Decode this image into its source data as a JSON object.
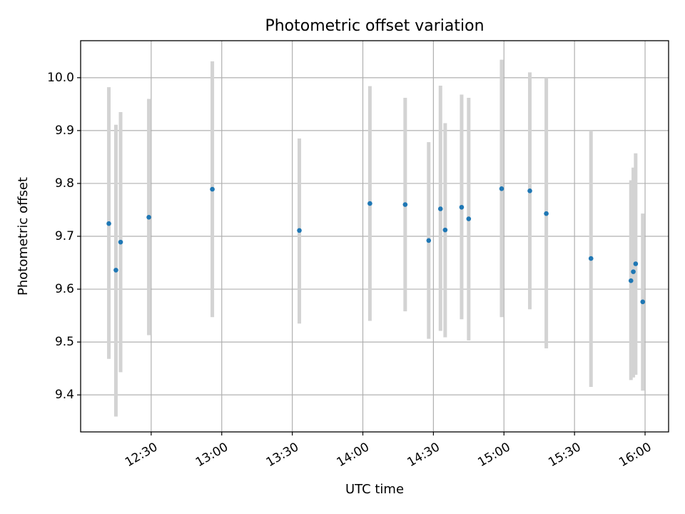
{
  "chart_data": {
    "type": "scatter",
    "title": "Photometric offset variation",
    "xlabel": "UTC time",
    "ylabel": "Photometric offset",
    "x_axis_type": "time",
    "xlim": [
      "12:00",
      "16:10"
    ],
    "ylim": [
      9.33,
      10.07
    ],
    "x_ticks": [
      "12:30",
      "13:00",
      "13:30",
      "14:00",
      "14:30",
      "15:00",
      "15:30",
      "16:00"
    ],
    "y_ticks": [
      "9.4",
      "9.5",
      "9.6",
      "9.7",
      "9.8",
      "9.9",
      "10.0"
    ],
    "grid": true,
    "legend": "none",
    "colors": {
      "points": "#1f77b4",
      "error_bars": "#d3d3d3",
      "grid": "#b0b0b0"
    },
    "series": [
      {
        "points": [
          {
            "x": "12:12",
            "y": 9.724,
            "ylow": 9.468,
            "yhigh": 9.982
          },
          {
            "x": "12:15",
            "y": 9.636,
            "ylow": 9.359,
            "yhigh": 9.911
          },
          {
            "x": "12:17",
            "y": 9.689,
            "ylow": 9.443,
            "yhigh": 9.935
          },
          {
            "x": "12:29",
            "y": 9.736,
            "ylow": 9.513,
            "yhigh": 9.96
          },
          {
            "x": "12:56",
            "y": 9.789,
            "ylow": 9.547,
            "yhigh": 10.031
          },
          {
            "x": "13:33",
            "y": 9.711,
            "ylow": 9.535,
            "yhigh": 9.885
          },
          {
            "x": "14:03",
            "y": 9.762,
            "ylow": 9.54,
            "yhigh": 9.984
          },
          {
            "x": "14:18",
            "y": 9.76,
            "ylow": 9.558,
            "yhigh": 9.962
          },
          {
            "x": "14:28",
            "y": 9.692,
            "ylow": 9.506,
            "yhigh": 9.878
          },
          {
            "x": "14:33",
            "y": 9.752,
            "ylow": 9.521,
            "yhigh": 9.985
          },
          {
            "x": "14:35",
            "y": 9.712,
            "ylow": 9.509,
            "yhigh": 9.914
          },
          {
            "x": "14:42",
            "y": 9.755,
            "ylow": 9.543,
            "yhigh": 9.968
          },
          {
            "x": "14:45",
            "y": 9.733,
            "ylow": 9.503,
            "yhigh": 9.962
          },
          {
            "x": "14:59",
            "y": 9.79,
            "ylow": 9.547,
            "yhigh": 10.034
          },
          {
            "x": "15:11",
            "y": 9.786,
            "ylow": 9.562,
            "yhigh": 10.01
          },
          {
            "x": "15:18",
            "y": 9.743,
            "ylow": 9.488,
            "yhigh": 10.0
          },
          {
            "x": "15:37",
            "y": 9.658,
            "ylow": 9.415,
            "yhigh": 9.9
          },
          {
            "x": "15:54",
            "y": 9.616,
            "ylow": 9.428,
            "yhigh": 9.806
          },
          {
            "x": "15:55",
            "y": 9.633,
            "ylow": 9.433,
            "yhigh": 9.83
          },
          {
            "x": "15:56",
            "y": 9.648,
            "ylow": 9.438,
            "yhigh": 9.857
          },
          {
            "x": "15:59",
            "y": 9.576,
            "ylow": 9.408,
            "yhigh": 9.743
          }
        ]
      }
    ]
  }
}
